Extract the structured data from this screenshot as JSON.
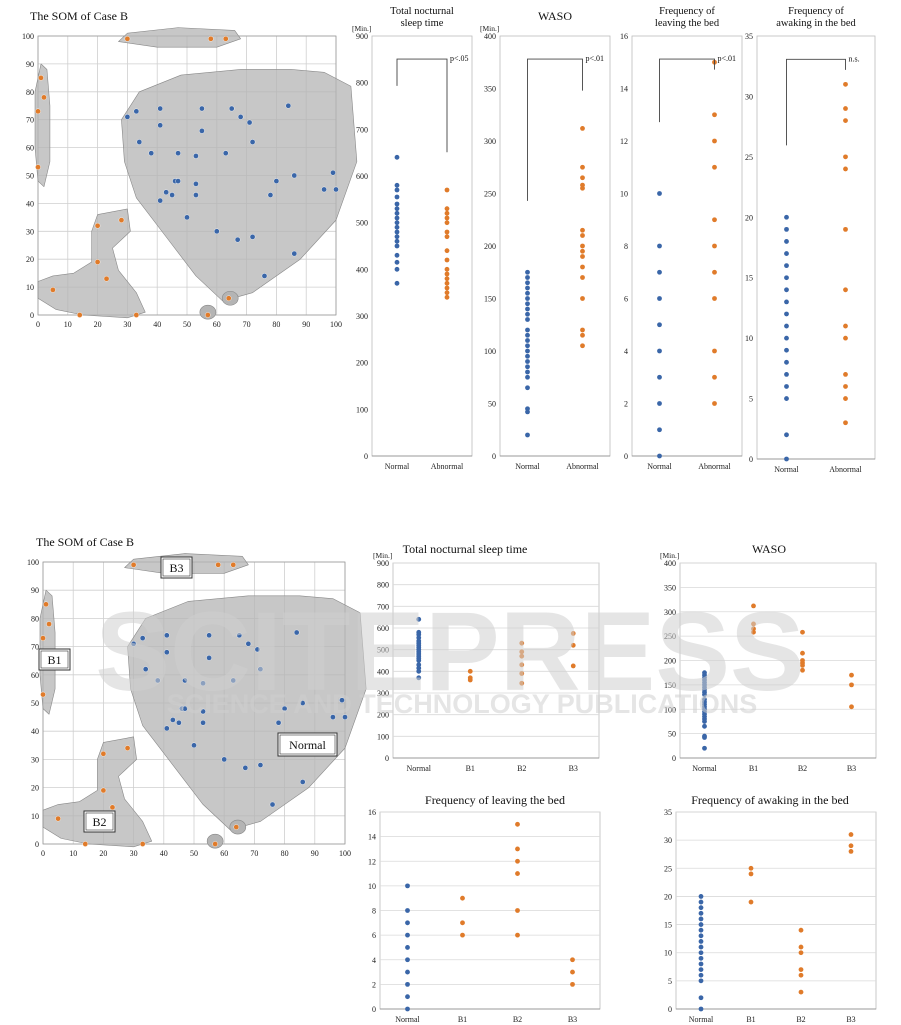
{
  "watermark": {
    "line1": "SCITEPRESS",
    "line2": "SCIENCE AND TECHNOLOGY PUBLICATIONS"
  },
  "colors": {
    "normal": "#3a66a8",
    "abnormal": "#e07b2a",
    "cluster": "#b4b4b4",
    "grid": "#cfcfcf"
  },
  "top": {
    "som": {
      "title": "The SOM of Case B",
      "xlim": [
        0,
        100
      ],
      "ylim": [
        0,
        100
      ],
      "ticks": [
        0,
        10,
        20,
        30,
        40,
        50,
        60,
        70,
        80,
        90,
        100
      ],
      "blue_points": [
        [
          30,
          71
        ],
        [
          33,
          73
        ],
        [
          34,
          62
        ],
        [
          38,
          58
        ],
        [
          41,
          74
        ],
        [
          41,
          68
        ],
        [
          41,
          41
        ],
        [
          43,
          44
        ],
        [
          45,
          43
        ],
        [
          46,
          48
        ],
        [
          47,
          58
        ],
        [
          47,
          48
        ],
        [
          50,
          35
        ],
        [
          53,
          57
        ],
        [
          53,
          47
        ],
        [
          53,
          43
        ],
        [
          55,
          74
        ],
        [
          55,
          66
        ],
        [
          60,
          30
        ],
        [
          63,
          58
        ],
        [
          65,
          74
        ],
        [
          67,
          27
        ],
        [
          68,
          71
        ],
        [
          71,
          69
        ],
        [
          72,
          62
        ],
        [
          72,
          28
        ],
        [
          76,
          14
        ],
        [
          78,
          43
        ],
        [
          80,
          48
        ],
        [
          84,
          75
        ],
        [
          86,
          50
        ],
        [
          86,
          22
        ],
        [
          96,
          45
        ],
        [
          99,
          51
        ],
        [
          100,
          45
        ]
      ],
      "orange_points": [
        [
          1,
          85
        ],
        [
          0,
          73
        ],
        [
          2,
          78
        ],
        [
          0,
          53
        ],
        [
          5,
          9
        ],
        [
          14,
          0
        ],
        [
          20,
          19
        ],
        [
          20,
          32
        ],
        [
          23,
          13
        ],
        [
          28,
          34
        ],
        [
          33,
          0
        ],
        [
          30,
          99
        ],
        [
          58,
          99
        ],
        [
          63,
          99
        ],
        [
          57,
          0
        ],
        [
          64,
          6
        ]
      ]
    },
    "charts": [
      {
        "title_lines": [
          "Total nocturnal",
          "sleep time"
        ],
        "unit": "[Min.]",
        "ylim": [
          0,
          900
        ],
        "ticks": [
          0,
          100,
          200,
          300,
          400,
          500,
          600,
          700,
          800,
          900
        ],
        "categories": [
          "Normal",
          "Abnormal"
        ],
        "significance": "p<.05",
        "series": [
          {
            "values": [
              640,
              580,
              570,
              555,
              540,
              530,
              520,
              510,
              500,
              490,
              480,
              470,
              460,
              450,
              430,
              415,
              400,
              370
            ]
          },
          {
            "values": [
              570,
              530,
              520,
              510,
              500,
              480,
              470,
              440,
              420,
              400,
              390,
              380,
              370,
              360,
              350,
              340
            ]
          }
        ]
      },
      {
        "title_lines": [
          "WASO"
        ],
        "unit": "[Min.]",
        "ylim": [
          0,
          400
        ],
        "ticks": [
          0,
          50,
          100,
          150,
          200,
          250,
          300,
          350,
          400
        ],
        "categories": [
          "Normal",
          "Abnormal"
        ],
        "significance": "p<.01",
        "series": [
          {
            "values": [
              175,
              170,
              165,
              160,
              155,
              150,
              145,
              140,
              135,
              130,
              120,
              115,
              110,
              105,
              100,
              95,
              90,
              85,
              80,
              75,
              65,
              45,
              42,
              20
            ]
          },
          {
            "values": [
              312,
              275,
              265,
              258,
              255,
              215,
              210,
              200,
              195,
              190,
              180,
              170,
              150,
              120,
              115,
              105
            ]
          }
        ]
      },
      {
        "title_lines": [
          "Frequency of",
          "leaving the bed"
        ],
        "unit": "",
        "ylim": [
          0,
          16
        ],
        "ticks": [
          0,
          2,
          4,
          6,
          8,
          10,
          12,
          14,
          16
        ],
        "categories": [
          "Normal",
          "Abnormal"
        ],
        "significance": "p<.01",
        "series": [
          {
            "values": [
              10,
              8,
              7,
              6,
              5,
              4,
              3,
              2,
              1,
              0
            ]
          },
          {
            "values": [
              15,
              13,
              12,
              11,
              9,
              8,
              7,
              6,
              4,
              3,
              2
            ]
          }
        ]
      },
      {
        "title_lines": [
          "Frequency of",
          "awaking in the bed"
        ],
        "unit": "",
        "ylim": [
          0,
          35
        ],
        "ticks": [
          0,
          5,
          10,
          15,
          20,
          25,
          30,
          35
        ],
        "categories": [
          "Normal",
          "Abnormal"
        ],
        "significance": "n.s.",
        "series": [
          {
            "values": [
              20,
              19,
              18,
              17,
              16,
              15,
              14,
              13,
              12,
              11,
              10,
              9,
              8,
              7,
              6,
              5,
              2,
              0
            ]
          },
          {
            "values": [
              31,
              29,
              28,
              25,
              24,
              19,
              14,
              11,
              10,
              7,
              6,
              5,
              3
            ]
          }
        ]
      }
    ]
  },
  "bottom": {
    "som": {
      "title": "The SOM of Case B",
      "labels": {
        "b3": "B3",
        "b1": "B1",
        "b2": "B2",
        "normal": "Normal"
      }
    },
    "charts": [
      {
        "title": "Total nocturnal sleep time",
        "unit": "[Min.]",
        "ylim": [
          0,
          900
        ],
        "ticks": [
          0,
          100,
          200,
          300,
          400,
          500,
          600,
          700,
          800,
          900
        ],
        "categories": [
          "Normal",
          "B1",
          "B2",
          "B3"
        ],
        "series": [
          [
            640,
            580,
            570,
            555,
            540,
            530,
            520,
            510,
            500,
            490,
            480,
            470,
            460,
            450,
            430,
            415,
            400,
            370
          ],
          [
            400,
            370,
            360
          ],
          [
            530,
            490,
            470,
            430,
            390,
            345
          ],
          [
            575,
            520,
            425
          ]
        ]
      },
      {
        "title": "WASO",
        "unit": "[Min.]",
        "ylim": [
          0,
          400
        ],
        "ticks": [
          0,
          50,
          100,
          150,
          200,
          250,
          300,
          350,
          400
        ],
        "categories": [
          "Normal",
          "B1",
          "B2",
          "B3"
        ],
        "series": [
          [
            175,
            170,
            165,
            160,
            155,
            150,
            145,
            140,
            135,
            130,
            120,
            115,
            110,
            105,
            100,
            95,
            90,
            85,
            80,
            75,
            65,
            45,
            42,
            20
          ],
          [
            312,
            275,
            265,
            258
          ],
          [
            258,
            215,
            200,
            195,
            190,
            180
          ],
          [
            170,
            150,
            105
          ]
        ]
      },
      {
        "title": "Frequency of leaving the bed",
        "unit": "",
        "ylim": [
          0,
          16
        ],
        "ticks": [
          0,
          2,
          4,
          6,
          8,
          10,
          12,
          14,
          16
        ],
        "categories": [
          "Normal",
          "B1",
          "B2",
          "B3"
        ],
        "series": [
          [
            10,
            8,
            7,
            6,
            5,
            4,
            3,
            2,
            1,
            0
          ],
          [
            9,
            7,
            6
          ],
          [
            15,
            13,
            12,
            11,
            8,
            6
          ],
          [
            4,
            3,
            2
          ]
        ]
      },
      {
        "title": "Frequency of awaking in the bed",
        "unit": "",
        "ylim": [
          0,
          35
        ],
        "ticks": [
          0,
          5,
          10,
          15,
          20,
          25,
          30,
          35
        ],
        "categories": [
          "Normal",
          "B1",
          "B2",
          "B3"
        ],
        "series": [
          [
            20,
            19,
            18,
            17,
            16,
            15,
            14,
            13,
            12,
            11,
            10,
            9,
            8,
            7,
            6,
            5,
            2,
            0
          ],
          [
            25,
            24,
            19
          ],
          [
            14,
            11,
            10,
            7,
            6,
            3
          ],
          [
            31,
            29,
            28
          ]
        ]
      }
    ]
  },
  "chart_data": [
    {
      "type": "scatter",
      "title": "The SOM of Case B",
      "xlim": [
        0,
        100
      ],
      "ylim": [
        0,
        100
      ]
    },
    {
      "type": "scatter",
      "title": "Total nocturnal sleep time",
      "ylabel": "[Min.]",
      "categories": [
        "Normal",
        "Abnormal"
      ],
      "ylim": [
        0,
        900
      ],
      "annotation": "p<.05"
    },
    {
      "type": "scatter",
      "title": "WASO",
      "ylabel": "[Min.]",
      "categories": [
        "Normal",
        "Abnormal"
      ],
      "ylim": [
        0,
        400
      ],
      "annotation": "p<.01"
    },
    {
      "type": "scatter",
      "title": "Frequency of leaving the bed",
      "categories": [
        "Normal",
        "Abnormal"
      ],
      "ylim": [
        0,
        16
      ],
      "annotation": "p<.01"
    },
    {
      "type": "scatter",
      "title": "Frequency of awaking in the bed",
      "categories": [
        "Normal",
        "Abnormal"
      ],
      "ylim": [
        0,
        35
      ],
      "annotation": "n.s."
    },
    {
      "type": "scatter",
      "title": "Total nocturnal sleep time",
      "ylabel": "[Min.]",
      "categories": [
        "Normal",
        "B1",
        "B2",
        "B3"
      ],
      "ylim": [
        0,
        900
      ]
    },
    {
      "type": "scatter",
      "title": "WASO",
      "ylabel": "[Min.]",
      "categories": [
        "Normal",
        "B1",
        "B2",
        "B3"
      ],
      "ylim": [
        0,
        400
      ]
    },
    {
      "type": "scatter",
      "title": "Frequency of leaving the bed",
      "categories": [
        "Normal",
        "B1",
        "B2",
        "B3"
      ],
      "ylim": [
        0,
        16
      ]
    },
    {
      "type": "scatter",
      "title": "Frequency of awaking in the bed",
      "categories": [
        "Normal",
        "B1",
        "B2",
        "B3"
      ],
      "ylim": [
        0,
        35
      ]
    }
  ]
}
